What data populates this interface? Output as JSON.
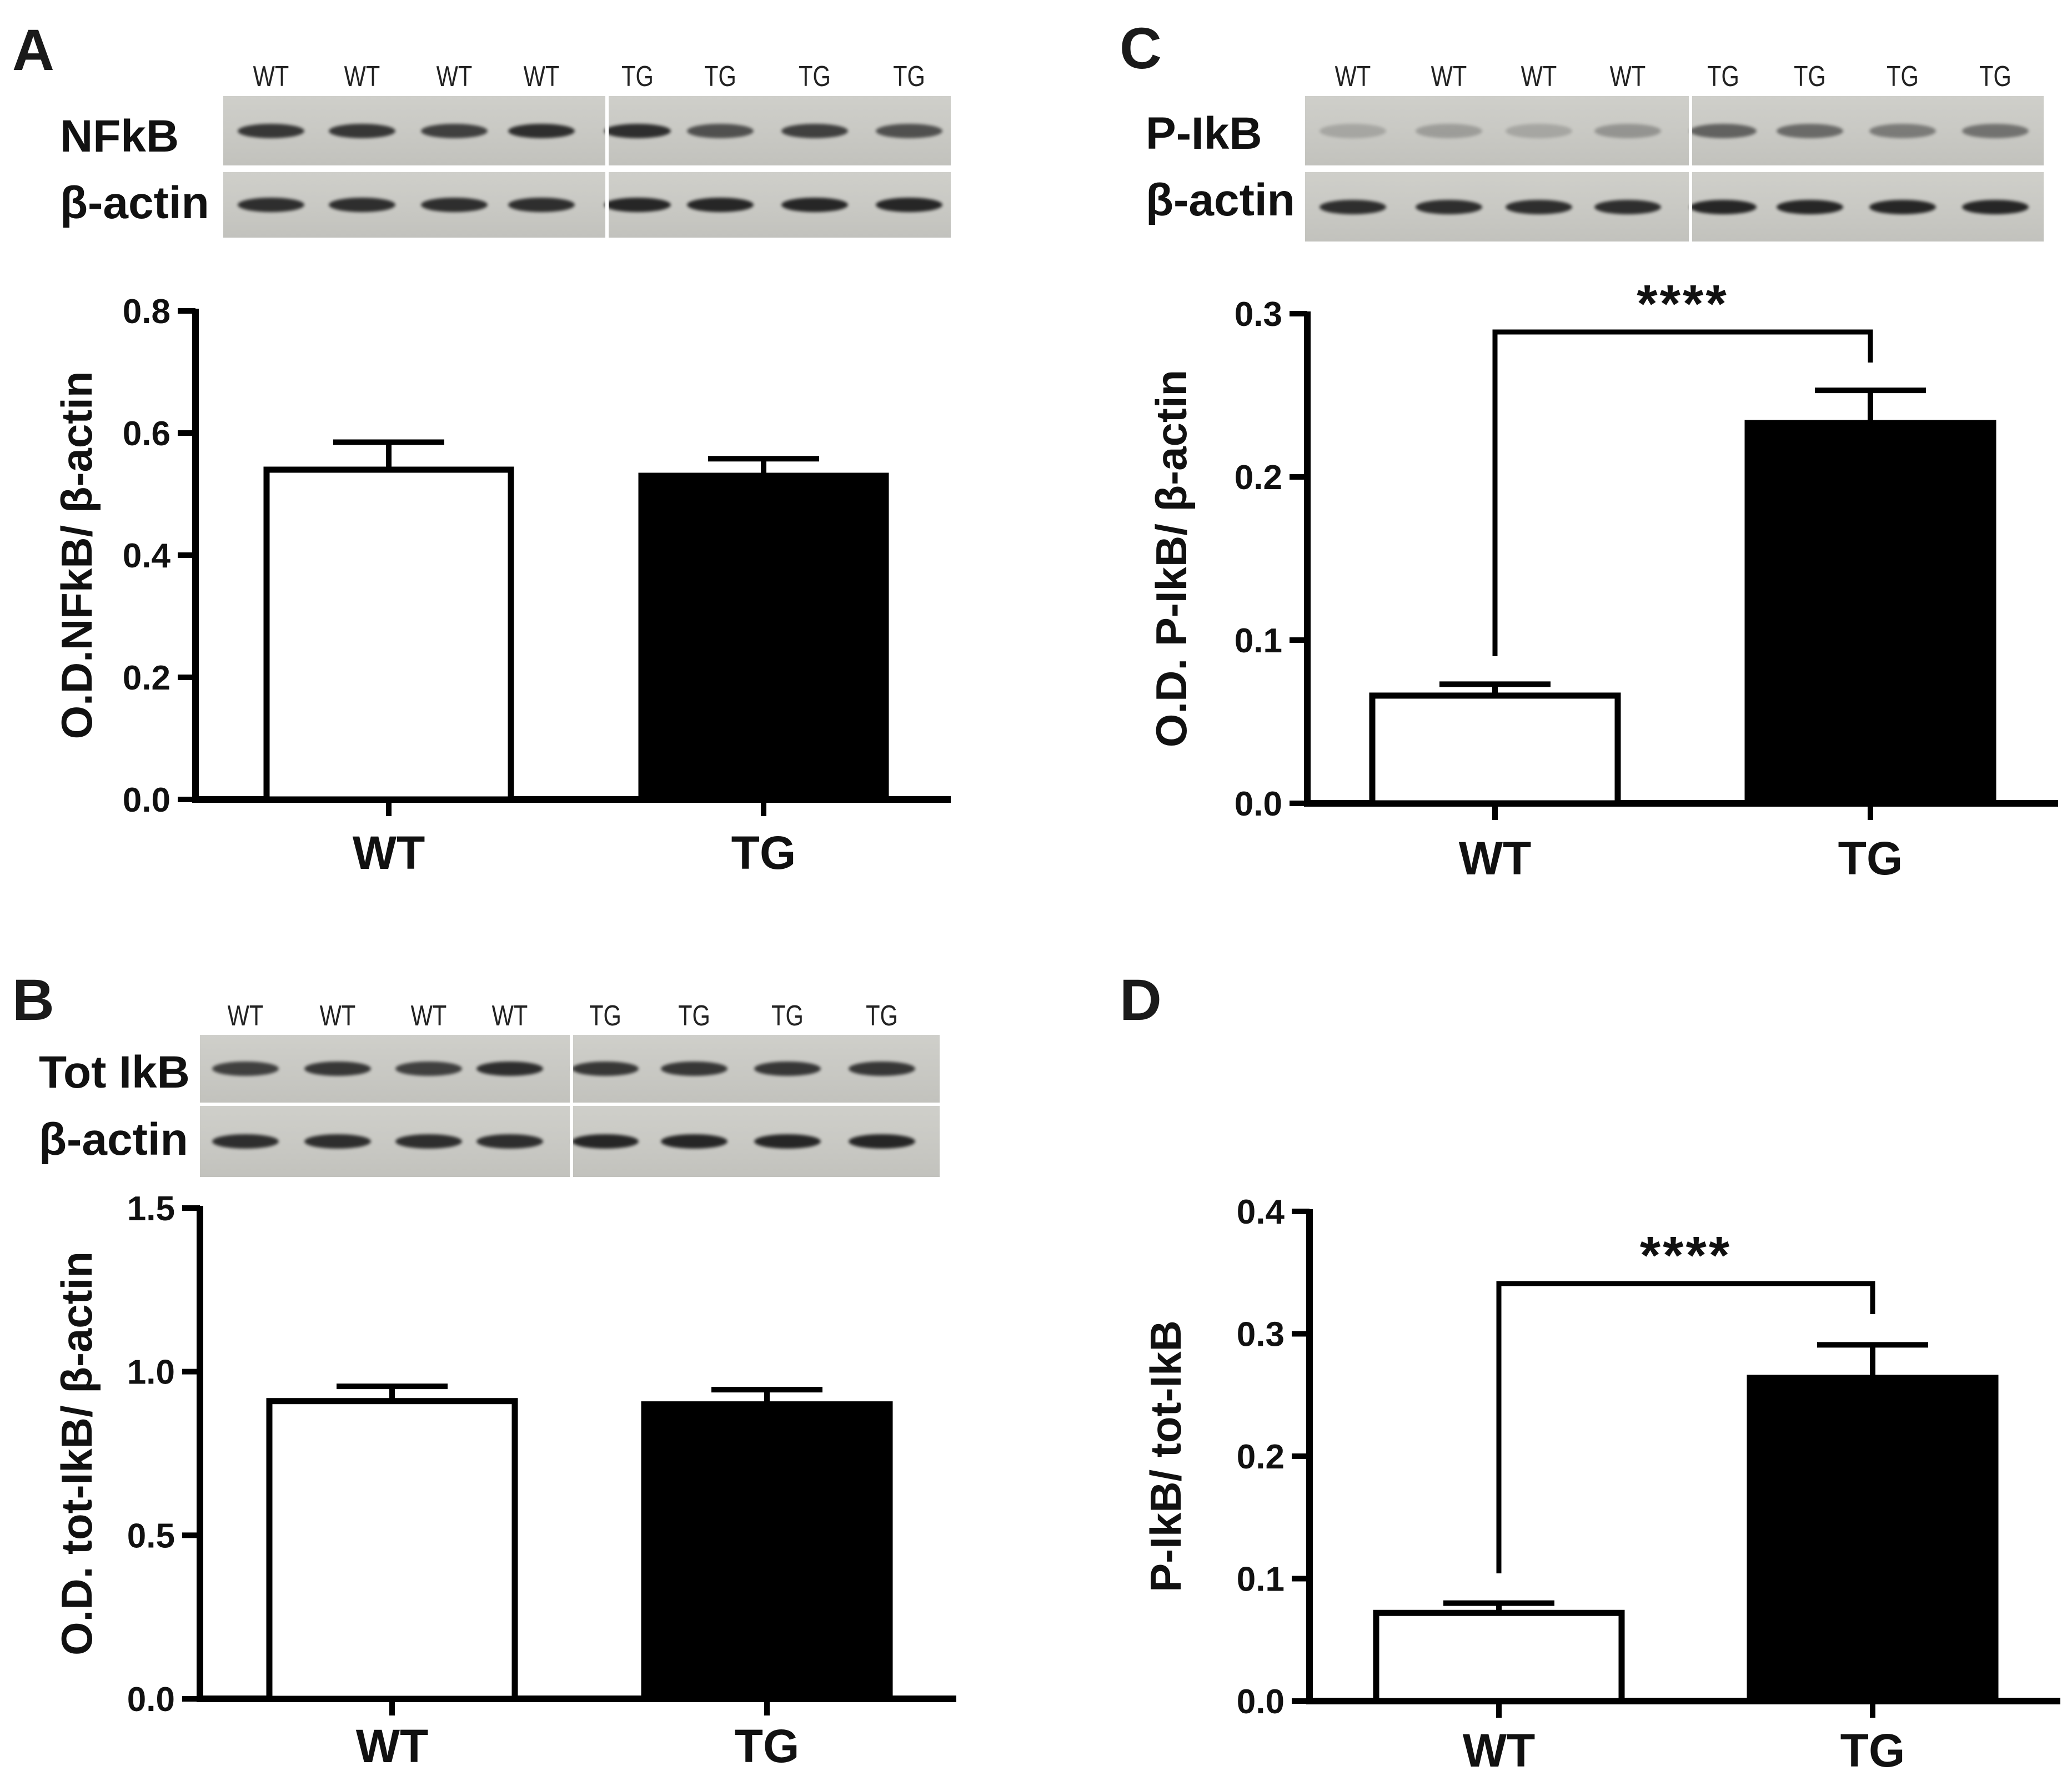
{
  "colors": {
    "wt_bar_fill": "#ffffff",
    "tg_bar_fill": "#000000",
    "axis": "#000000",
    "band": "#1e1e1e",
    "blot_bg": "#c9c9c4"
  },
  "panels": [
    {
      "letter": "A",
      "blot": {
        "lanes": [
          "WT",
          "WT",
          "WT",
          "WT",
          "TG",
          "TG",
          "TG",
          "TG"
        ],
        "rows": [
          {
            "label": "NFkB",
            "intensity": [
              0.85,
              0.85,
              0.8,
              0.9,
              0.9,
              0.7,
              0.8,
              0.7
            ]
          },
          {
            "label": "β-actin",
            "intensity": [
              0.9,
              0.9,
              0.9,
              0.9,
              0.95,
              0.95,
              0.95,
              0.95
            ]
          }
        ]
      },
      "chart_data": {
        "type": "bar",
        "categories": [
          "WT",
          "TG"
        ],
        "values": [
          0.54,
          0.53
        ],
        "errors": [
          0.045,
          0.028
        ],
        "ylabel": "O.D.NFkB/ β-actin",
        "ylim": [
          0,
          0.8
        ],
        "yticks": [
          "0.0",
          "0.2",
          "0.4",
          "0.6",
          "0.8"
        ],
        "significance": null
      }
    },
    {
      "letter": "B",
      "blot": {
        "lanes": [
          "WT",
          "WT",
          "WT",
          "WT",
          "TG",
          "TG",
          "TG",
          "TG"
        ],
        "rows": [
          {
            "label": "Tot IkB",
            "intensity": [
              0.8,
              0.85,
              0.8,
              0.9,
              0.85,
              0.85,
              0.85,
              0.85
            ]
          },
          {
            "label": "β-actin",
            "intensity": [
              0.9,
              0.9,
              0.9,
              0.9,
              0.95,
              0.95,
              0.95,
              0.95
            ]
          }
        ]
      },
      "chart_data": {
        "type": "bar",
        "categories": [
          "WT",
          "TG"
        ],
        "values": [
          0.91,
          0.9
        ],
        "errors": [
          0.045,
          0.045
        ],
        "ylabel": "O.D. tot-IkB/ β-actin",
        "ylim": [
          0,
          1.5
        ],
        "yticks": [
          "0.0",
          "0.5",
          "1.0",
          "1.5"
        ],
        "significance": null
      }
    },
    {
      "letter": "C",
      "blot": {
        "lanes": [
          "WT",
          "WT",
          "WT",
          "WT",
          "TG",
          "TG",
          "TG",
          "TG"
        ],
        "rows": [
          {
            "label": "P-IkB",
            "intensity": [
              0.2,
              0.25,
              0.2,
              0.3,
              0.6,
              0.55,
              0.45,
              0.5
            ]
          },
          {
            "label": "β-actin",
            "intensity": [
              0.9,
              0.9,
              0.9,
              0.9,
              0.95,
              0.95,
              0.95,
              0.95
            ]
          }
        ]
      },
      "chart_data": {
        "type": "bar",
        "categories": [
          "WT",
          "TG"
        ],
        "values": [
          0.066,
          0.233
        ],
        "errors": [
          0.007,
          0.02
        ],
        "ylabel": "O.D. P-IkB/ β-actin",
        "ylim": [
          0,
          0.3
        ],
        "yticks": [
          "0.0",
          "0.1",
          "0.2",
          "0.3"
        ],
        "significance": "****"
      }
    },
    {
      "letter": "D",
      "blot": null,
      "chart_data": {
        "type": "bar",
        "categories": [
          "WT",
          "TG"
        ],
        "values": [
          0.072,
          0.264
        ],
        "errors": [
          0.008,
          0.027
        ],
        "ylabel": "P-IkB/ tot-IkB",
        "ylim": [
          0,
          0.4
        ],
        "yticks": [
          "0.0",
          "0.1",
          "0.2",
          "0.3",
          "0.4"
        ],
        "significance": "****"
      }
    }
  ]
}
